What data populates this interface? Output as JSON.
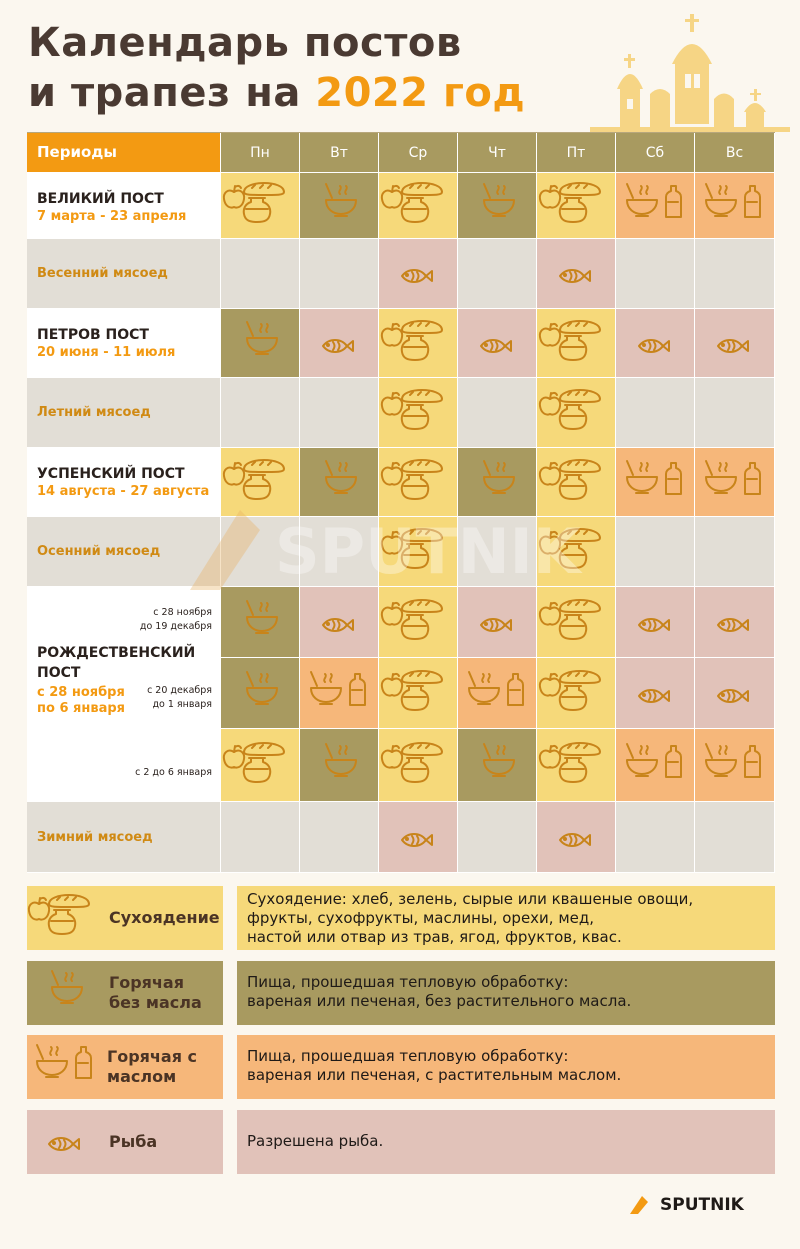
{
  "title": {
    "line1": "Календарь постов",
    "line2_prefix": "и трапез на ",
    "year": "2022 год"
  },
  "header": {
    "periods_label": "Периоды",
    "days": [
      "Пн",
      "Вт",
      "Ср",
      "Чт",
      "Пт",
      "Сб",
      "Вс"
    ]
  },
  "rows": [
    {
      "name": "ВЕЛИКИЙ ПОСТ",
      "dates": "7 марта - 23 апреля",
      "cells": [
        "dry",
        "hot",
        "dry",
        "hot",
        "dry",
        "oil",
        "oil"
      ]
    },
    {
      "meat": "Весенний мясоед",
      "cells": [
        "none",
        "none",
        "fish",
        "none",
        "fish",
        "none",
        "none"
      ]
    },
    {
      "name": "ПЕТРОВ ПОСТ",
      "dates": "20 июня - 11 июля",
      "cells": [
        "hot",
        "fish",
        "dry",
        "fish",
        "dry",
        "fish",
        "fish"
      ]
    },
    {
      "meat": "Летний мясоед",
      "cells": [
        "none",
        "none",
        "dry",
        "none",
        "dry",
        "none",
        "none"
      ]
    },
    {
      "name": "УСПЕНСКИЙ ПОСТ",
      "dates": "14 августа - 27 августа",
      "cells": [
        "dry",
        "hot",
        "dry",
        "hot",
        "dry",
        "oil",
        "oil"
      ]
    },
    {
      "meat": "Осенний мясоед",
      "cells": [
        "none",
        "none",
        "dry",
        "none",
        "dry",
        "none",
        "none"
      ]
    },
    {
      "sub": "с 28 ноября|до 19 декабря",
      "cells": [
        "hot",
        "fish",
        "dry",
        "fish",
        "dry",
        "fish",
        "fish"
      ]
    },
    {
      "sub": "с 20 декабря|до 1 января",
      "cells": [
        "hot",
        "oil",
        "dry",
        "oil",
        "dry",
        "fish",
        "fish"
      ]
    },
    {
      "sub": "с 2 до 6 января",
      "cells": [
        "dry",
        "hot",
        "dry",
        "hot",
        "dry",
        "oil",
        "oil"
      ]
    },
    {
      "meat": "Зимний мясоед",
      "cells": [
        "none",
        "none",
        "fish",
        "none",
        "fish",
        "none",
        "none"
      ]
    }
  ],
  "christmas": {
    "name_l1": "РОЖДЕСТВЕНСКИЙ",
    "name_l2": "ПОСТ",
    "dates_l1": "с 28 ноября",
    "dates_l2": "по 6 января"
  },
  "sub_labels": {
    "s1a": "с 28 ноября",
    "s1b": "до 19 декабря",
    "s2a": "с 20 декабря",
    "s2b": "до 1 января",
    "s3": "с 2 до 6 января"
  },
  "legend": [
    {
      "label_l1": "Сухоядение",
      "label_l2": "",
      "color": "#f6d97a",
      "lines": [
        "Сухоядение: хлеб, зелень, сырые или квашеные овощи,",
        "фрукты, сухофрукты, маслины, орехи, мед,",
        "настой или отвар из трав, ягод, фруктов, квас."
      ]
    },
    {
      "label_l1": "Горячая",
      "label_l2": "без масла",
      "color": "#a89a60",
      "lines": [
        "Пища, прошедшая тепловую обработку:",
        "вареная или печеная, без растительного масла."
      ]
    },
    {
      "label_l1": "Горячая с",
      "label_l2": "маслом",
      "color": "#f6b77a",
      "lines": [
        "Пища, прошедшая тепловую обработку:",
        "вареная или печеная, с растительным маслом."
      ]
    },
    {
      "label_l1": "Рыба",
      "label_l2": "",
      "color": "#e1c2b9",
      "lines": [
        "Разрешена рыба."
      ]
    }
  ],
  "watermark": "SPUTNIK",
  "brand": "SPUTNIK",
  "colors": {
    "dry": "#f6d97a",
    "hot": "#a89a60",
    "oil": "#f6b77a",
    "fish": "#e1c2b9",
    "none": "#e2ded6",
    "icon": "#c8841a",
    "accent": "#f39a12"
  }
}
